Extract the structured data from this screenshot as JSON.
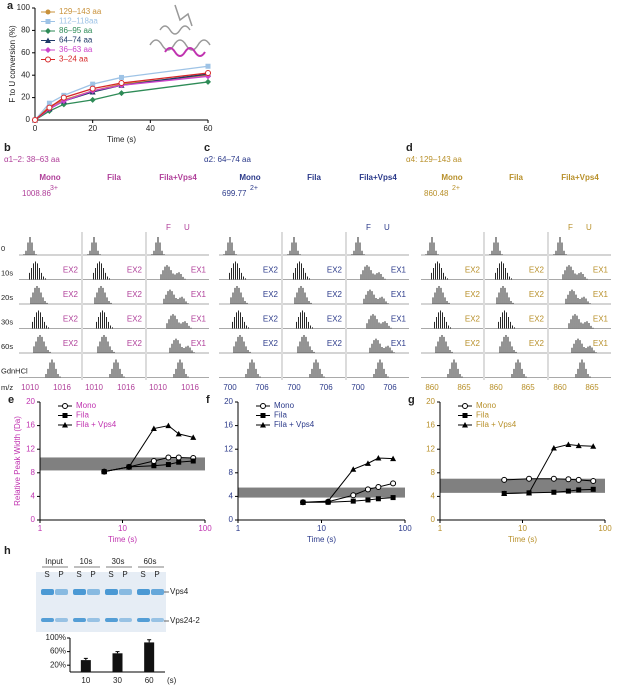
{
  "chart_data": [
    {
      "panel": "a",
      "type": "line",
      "xlabel": "Time (s)",
      "ylabel": "F to U conversion (%)",
      "xlim": [
        0,
        60
      ],
      "ylim": [
        0,
        100
      ],
      "xticks": [
        0,
        20,
        40,
        60
      ],
      "yticks": [
        0,
        20,
        40,
        60,
        80,
        100
      ],
      "x": [
        0,
        5,
        10,
        20,
        30,
        60
      ],
      "series": [
        {
          "name": "129–143 aa",
          "color": "#c8913a",
          "marker": "circle",
          "values": [
            0,
            12,
            18,
            26,
            32,
            40
          ]
        },
        {
          "name": "112–118aa",
          "color": "#9ec3e6",
          "marker": "square",
          "values": [
            0,
            15,
            22,
            32,
            38,
            48
          ]
        },
        {
          "name": "86–95 aa",
          "color": "#2e8b57",
          "marker": "diamond",
          "values": [
            0,
            8,
            14,
            18,
            24,
            34
          ]
        },
        {
          "name": "64–74 aa",
          "color": "#1f3a68",
          "marker": "triangle",
          "values": [
            0,
            10,
            17,
            25,
            31,
            41
          ]
        },
        {
          "name": "36–63 aa",
          "color": "#cc44cc",
          "marker": "diamond",
          "values": [
            0,
            10,
            17,
            26,
            31,
            39
          ]
        },
        {
          "name": "3–24 aa",
          "color": "#d62728",
          "marker": "circle-open",
          "values": [
            0,
            11,
            20,
            28,
            33,
            42
          ]
        }
      ]
    },
    {
      "panel": "e",
      "type": "line",
      "xlog": true,
      "legend_color": "#c033b0",
      "xlabel": "Time (s)",
      "ylabel": "Relative Peak Width (Da)",
      "xlim": [
        1,
        100
      ],
      "ylim": [
        0,
        20
      ],
      "xticks": [
        1,
        10,
        100
      ],
      "yticks": [
        0,
        4,
        8,
        12,
        16,
        20
      ],
      "band": [
        8.4,
        10.6
      ],
      "x": [
        6,
        12,
        24,
        36,
        48,
        72
      ],
      "series": [
        {
          "name": "Mono",
          "color": "#000000",
          "marker": "circle-open",
          "values": [
            8.2,
            9,
            10,
            10.6,
            10.6,
            10.5
          ]
        },
        {
          "name": "Fila",
          "color": "#000000",
          "marker": "square",
          "values": [
            8.2,
            9,
            9.2,
            9.4,
            9.8,
            10
          ]
        },
        {
          "name": "Fila + Vps4",
          "color": "#000000",
          "marker": "triangle",
          "values": [
            8.2,
            9,
            15.5,
            16,
            14.6,
            14
          ]
        }
      ]
    },
    {
      "panel": "f",
      "type": "line",
      "xlog": true,
      "legend_color": "#2b3a8a",
      "xlabel": "Time (s)",
      "xlim": [
        1,
        100
      ],
      "ylim": [
        0,
        20
      ],
      "xticks": [
        1,
        10,
        100
      ],
      "yticks": [
        0,
        4,
        8,
        12,
        16,
        20
      ],
      "band": [
        3.8,
        5.5
      ],
      "x": [
        6,
        12,
        24,
        36,
        48,
        72
      ],
      "series": [
        {
          "name": "Mono",
          "color": "#000000",
          "marker": "circle-open",
          "values": [
            3,
            3.1,
            4.2,
            5.2,
            5.6,
            6.2
          ]
        },
        {
          "name": "Fila",
          "color": "#000000",
          "marker": "square",
          "values": [
            3,
            3,
            3.2,
            3.4,
            3.6,
            3.8
          ]
        },
        {
          "name": "Fila + Vps4",
          "color": "#000000",
          "marker": "triangle",
          "values": [
            3,
            3.2,
            8.6,
            9.6,
            10.5,
            10.4
          ]
        }
      ]
    },
    {
      "panel": "g",
      "type": "line",
      "xlog": true,
      "legend_color": "#b8902a",
      "xlabel": "Time (s)",
      "xlim": [
        1,
        100
      ],
      "ylim": [
        0,
        20
      ],
      "xticks": [
        1,
        10,
        100
      ],
      "yticks": [
        0,
        4,
        8,
        12,
        16,
        20
      ],
      "band": [
        4.6,
        7
      ],
      "x": [
        6,
        12,
        24,
        36,
        48,
        72
      ],
      "series": [
        {
          "name": "Mono",
          "color": "#000000",
          "marker": "circle-open",
          "values": [
            6.8,
            7,
            7,
            6.9,
            6.8,
            6.6
          ]
        },
        {
          "name": "Fila",
          "color": "#000000",
          "marker": "square",
          "values": [
            4.5,
            4.6,
            4.7,
            4.9,
            5.1,
            5.2
          ]
        },
        {
          "name": "Fila + Vps4",
          "color": "#000000",
          "marker": "triangle",
          "values": [
            4.5,
            4.6,
            12.2,
            12.8,
            12.6,
            12.5
          ]
        }
      ]
    },
    {
      "panel": "h",
      "type": "bar",
      "categories": [
        "10",
        "30",
        "60"
      ],
      "unit": "(s)",
      "values": [
        35,
        55,
        87
      ],
      "errors": [
        5,
        5,
        8
      ],
      "color": "#111111",
      "ylim": [
        0,
        100
      ],
      "yticks": [
        {
          "value": 20,
          "label": "20%"
        },
        {
          "value": 60,
          "label": "60%"
        },
        {
          "value": 100,
          "label": "100%"
        }
      ]
    }
  ],
  "spectra": {
    "rows": [
      "0",
      "10s",
      "20s",
      "30s",
      "60s",
      "GdnHCl"
    ],
    "axis": "m/z",
    "panels": [
      {
        "label": "b",
        "title": "α1–2: 38–63 aa",
        "color": "#b0409a",
        "columns": [
          "Mono",
          "Fila",
          "Fila+Vps4"
        ],
        "mass": "1008.86",
        "charge": "3+",
        "f": "F",
        "u": "U",
        "ticks": [
          "1010",
          "1016"
        ],
        "ex": [
          [
            "EX2",
            "EX2",
            "EX1"
          ],
          [
            "EX2",
            "EX2",
            "EX1"
          ],
          [
            "EX2",
            "EX2",
            "EX1"
          ],
          [
            "EX2",
            "EX2",
            "EX1"
          ]
        ]
      },
      {
        "label": "c",
        "title": "α2: 64–74 aa",
        "color": "#2b3a8a",
        "columns": [
          "Mono",
          "Fila",
          "Fila+Vps4"
        ],
        "mass": "699.77",
        "charge": "2+",
        "f": "F",
        "u": "U",
        "ticks": [
          "700",
          "706"
        ],
        "ex": [
          [
            "EX2",
            "EX2",
            "EX1"
          ],
          [
            "EX2",
            "EX2",
            "EX1"
          ],
          [
            "EX2",
            "EX2",
            "EX1"
          ],
          [
            "EX2",
            "EX2",
            "EX1"
          ]
        ]
      },
      {
        "label": "d",
        "title": "α4: 129–143 aa",
        "color": "#b8902a",
        "columns": [
          "Mono",
          "Fila",
          "Fila+Vps4"
        ],
        "mass": "860.48",
        "charge": "2+",
        "f": "F",
        "u": "U",
        "ticks": [
          "860",
          "865"
        ],
        "ex": [
          [
            "EX2",
            "EX2",
            "EX1"
          ],
          [
            "EX2",
            "EX2",
            "EX1"
          ],
          [
            "EX2",
            "EX2",
            "EX1"
          ],
          [
            "EX2",
            "EX2",
            "EX1"
          ]
        ]
      }
    ]
  },
  "gel": {
    "lanes": [
      "Input",
      "10s",
      "30s",
      "60s"
    ],
    "fractions": [
      "S",
      "P"
    ],
    "bands": [
      "Vps4",
      "Vps24-2"
    ]
  }
}
